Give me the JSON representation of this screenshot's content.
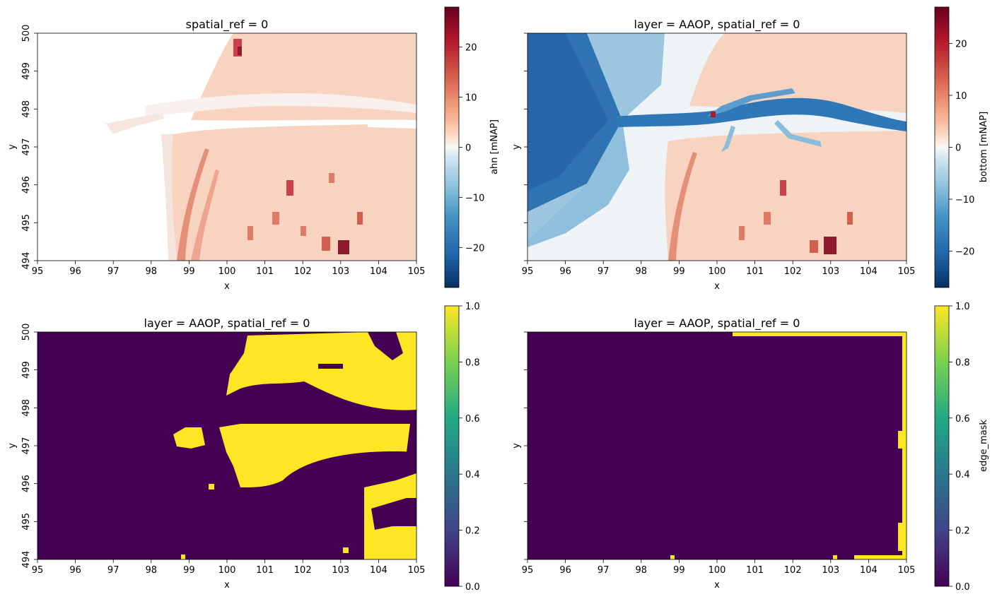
{
  "chart_data": [
    {
      "type": "heatmap",
      "title": "spatial_ref = 0",
      "xlabel": "x",
      "ylabel": "y",
      "xlim": [
        95,
        105
      ],
      "ylim": [
        494,
        500
      ],
      "xticks": [
        "95",
        "96",
        "97",
        "98",
        "99",
        "100",
        "101",
        "102",
        "103",
        "104",
        "105"
      ],
      "yticks": [
        "494",
        "495",
        "496",
        "497",
        "498",
        "499",
        "500"
      ],
      "show_yticklabels": true,
      "colorbar": {
        "label": "ahn [mNAP]",
        "colormap": "RdBu_r",
        "range": [
          -28,
          28
        ],
        "ticks": [
          "20",
          "10",
          "0",
          "−10",
          "−20"
        ],
        "tick_values": [
          20,
          10,
          0,
          -10,
          -20
        ]
      }
    },
    {
      "type": "heatmap",
      "title": "layer = AAOP, spatial_ref = 0",
      "xlabel": "x",
      "ylabel": "y",
      "xlim": [
        95,
        105
      ],
      "ylim": [
        494,
        500
      ],
      "xticks": [
        "95",
        "96",
        "97",
        "98",
        "99",
        "100",
        "101",
        "102",
        "103",
        "104",
        "105"
      ],
      "yticks": [
        "494",
        "495",
        "496",
        "497",
        "498",
        "499",
        "500"
      ],
      "show_yticklabels": false,
      "colorbar": {
        "label": "bottom [mNAP]",
        "colormap": "RdBu_r",
        "range": [
          -27,
          27
        ],
        "ticks": [
          "20",
          "10",
          "0",
          "−10",
          "−20"
        ],
        "tick_values": [
          20,
          10,
          0,
          -10,
          -20
        ]
      }
    },
    {
      "type": "heatmap",
      "title": "layer = AAOP, spatial_ref = 0",
      "xlabel": "x",
      "ylabel": "y",
      "xlim": [
        95,
        105
      ],
      "ylim": [
        494,
        500
      ],
      "xticks": [
        "95",
        "96",
        "97",
        "98",
        "99",
        "100",
        "101",
        "102",
        "103",
        "104",
        "105"
      ],
      "yticks": [
        "494",
        "495",
        "496",
        "497",
        "498",
        "499",
        "500"
      ],
      "show_yticklabels": true,
      "colorbar": {
        "label": "",
        "colormap": "viridis",
        "range": [
          0,
          1
        ],
        "ticks": [
          "1.0",
          "0.8",
          "0.6",
          "0.4",
          "0.2",
          "0.0"
        ],
        "tick_values": [
          1.0,
          0.8,
          0.6,
          0.4,
          0.2,
          0.0
        ]
      }
    },
    {
      "type": "heatmap",
      "title": "layer = AAOP, spatial_ref = 0",
      "xlabel": "x",
      "ylabel": "y",
      "xlim": [
        95,
        105
      ],
      "ylim": [
        494,
        500
      ],
      "xticks": [
        "95",
        "96",
        "97",
        "98",
        "99",
        "100",
        "101",
        "102",
        "103",
        "104",
        "105"
      ],
      "yticks": [
        "494",
        "495",
        "496",
        "497",
        "498",
        "499",
        "500"
      ],
      "show_yticklabels": false,
      "colorbar": {
        "label": "edge_mask",
        "colormap": "viridis",
        "range": [
          0,
          1
        ],
        "ticks": [
          "1.0",
          "0.8",
          "0.6",
          "0.4",
          "0.2",
          "0.0"
        ],
        "tick_values": [
          1.0,
          0.8,
          0.6,
          0.4,
          0.2,
          0.0
        ]
      }
    }
  ]
}
